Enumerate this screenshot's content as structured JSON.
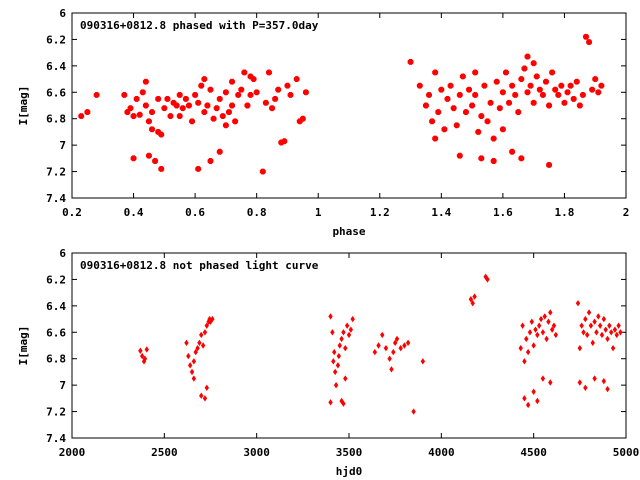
{
  "chart_data": [
    {
      "type": "scatter",
      "title": "090316+0812.8 phased with P=357.0day",
      "xlabel": "phase",
      "ylabel": "I[mag]",
      "xlim": [
        0.2,
        2.0
      ],
      "ylim": [
        6.0,
        7.4
      ],
      "y_inverted": true,
      "xticks": [
        "0.2",
        "0.4",
        "0.6",
        "0.8",
        "1",
        "1.2",
        "1.4",
        "1.6",
        "1.8",
        "2"
      ],
      "yticks": [
        "6",
        "6.2",
        "6.4",
        "6.6",
        "6.8",
        "7",
        "7.2",
        "7.4"
      ],
      "marker": "star",
      "color": "#ff0000",
      "grid": false,
      "points": [
        [
          0.23,
          6.78
        ],
        [
          0.25,
          6.75
        ],
        [
          0.28,
          6.62
        ],
        [
          0.37,
          6.62
        ],
        [
          0.38,
          6.75
        ],
        [
          0.39,
          6.72
        ],
        [
          0.4,
          6.78
        ],
        [
          0.4,
          7.1
        ],
        [
          0.41,
          6.65
        ],
        [
          0.42,
          6.77
        ],
        [
          0.43,
          6.6
        ],
        [
          0.44,
          6.52
        ],
        [
          0.44,
          6.7
        ],
        [
          0.45,
          6.82
        ],
        [
          0.46,
          6.75
        ],
        [
          0.45,
          7.08
        ],
        [
          0.46,
          6.88
        ],
        [
          0.47,
          7.12
        ],
        [
          0.48,
          6.9
        ],
        [
          0.48,
          6.65
        ],
        [
          0.49,
          6.92
        ],
        [
          0.49,
          7.18
        ],
        [
          0.5,
          6.72
        ],
        [
          0.51,
          6.65
        ],
        [
          0.52,
          6.78
        ],
        [
          0.53,
          6.68
        ],
        [
          0.54,
          6.7
        ],
        [
          0.55,
          6.62
        ],
        [
          0.55,
          6.78
        ],
        [
          0.56,
          6.72
        ],
        [
          0.57,
          6.65
        ],
        [
          0.58,
          6.7
        ],
        [
          0.59,
          6.82
        ],
        [
          0.6,
          6.62
        ],
        [
          0.61,
          6.68
        ],
        [
          0.61,
          7.18
        ],
        [
          0.62,
          6.55
        ],
        [
          0.63,
          6.5
        ],
        [
          0.63,
          6.75
        ],
        [
          0.64,
          6.7
        ],
        [
          0.65,
          6.58
        ],
        [
          0.65,
          7.12
        ],
        [
          0.66,
          6.8
        ],
        [
          0.67,
          6.72
        ],
        [
          0.68,
          6.65
        ],
        [
          0.68,
          7.05
        ],
        [
          0.69,
          6.78
        ],
        [
          0.7,
          6.6
        ],
        [
          0.7,
          6.85
        ],
        [
          0.71,
          6.75
        ],
        [
          0.72,
          6.7
        ],
        [
          0.72,
          6.52
        ],
        [
          0.73,
          6.82
        ],
        [
          0.74,
          6.62
        ],
        [
          0.75,
          6.58
        ],
        [
          0.76,
          6.45
        ],
        [
          0.77,
          6.7
        ],
        [
          0.78,
          6.48
        ],
        [
          0.78,
          6.62
        ],
        [
          0.79,
          6.5
        ],
        [
          0.8,
          6.6
        ],
        [
          0.82,
          7.2
        ],
        [
          0.83,
          6.68
        ],
        [
          0.84,
          6.45
        ],
        [
          0.85,
          6.72
        ],
        [
          0.86,
          6.65
        ],
        [
          0.87,
          6.58
        ],
        [
          0.88,
          6.98
        ],
        [
          0.89,
          6.97
        ],
        [
          0.9,
          6.55
        ],
        [
          0.91,
          6.62
        ],
        [
          0.93,
          6.5
        ],
        [
          0.94,
          6.82
        ],
        [
          0.95,
          6.8
        ],
        [
          0.96,
          6.6
        ],
        [
          1.3,
          6.37
        ],
        [
          1.33,
          6.55
        ],
        [
          1.35,
          6.7
        ],
        [
          1.36,
          6.62
        ],
        [
          1.37,
          6.82
        ],
        [
          1.38,
          6.95
        ],
        [
          1.38,
          6.45
        ],
        [
          1.39,
          6.75
        ],
        [
          1.4,
          6.58
        ],
        [
          1.41,
          6.88
        ],
        [
          1.42,
          6.65
        ],
        [
          1.43,
          6.55
        ],
        [
          1.44,
          6.72
        ],
        [
          1.45,
          6.85
        ],
        [
          1.46,
          6.62
        ],
        [
          1.46,
          7.08
        ],
        [
          1.47,
          6.48
        ],
        [
          1.48,
          6.75
        ],
        [
          1.49,
          6.58
        ],
        [
          1.5,
          6.7
        ],
        [
          1.51,
          6.62
        ],
        [
          1.51,
          6.45
        ],
        [
          1.52,
          6.9
        ],
        [
          1.53,
          6.78
        ],
        [
          1.53,
          7.1
        ],
        [
          1.54,
          6.55
        ],
        [
          1.55,
          6.82
        ],
        [
          1.56,
          6.68
        ],
        [
          1.57,
          6.95
        ],
        [
          1.57,
          7.12
        ],
        [
          1.58,
          6.52
        ],
        [
          1.59,
          6.72
        ],
        [
          1.6,
          6.6
        ],
        [
          1.6,
          6.88
        ],
        [
          1.61,
          6.45
        ],
        [
          1.62,
          6.68
        ],
        [
          1.63,
          6.55
        ],
        [
          1.63,
          7.05
        ],
        [
          1.64,
          6.62
        ],
        [
          1.65,
          6.75
        ],
        [
          1.66,
          6.5
        ],
        [
          1.66,
          7.1
        ],
        [
          1.67,
          6.42
        ],
        [
          1.68,
          6.6
        ],
        [
          1.68,
          6.33
        ],
        [
          1.69,
          6.55
        ],
        [
          1.7,
          6.68
        ],
        [
          1.7,
          6.38
        ],
        [
          1.71,
          6.48
        ],
        [
          1.72,
          6.58
        ],
        [
          1.73,
          6.62
        ],
        [
          1.74,
          6.52
        ],
        [
          1.75,
          6.7
        ],
        [
          1.75,
          7.15
        ],
        [
          1.76,
          6.45
        ],
        [
          1.77,
          6.58
        ],
        [
          1.78,
          6.62
        ],
        [
          1.79,
          6.55
        ],
        [
          1.8,
          6.68
        ],
        [
          1.81,
          6.6
        ],
        [
          1.82,
          6.55
        ],
        [
          1.83,
          6.65
        ],
        [
          1.84,
          6.52
        ],
        [
          1.85,
          6.7
        ],
        [
          1.86,
          6.62
        ],
        [
          1.87,
          6.18
        ],
        [
          1.88,
          6.22
        ],
        [
          1.89,
          6.58
        ],
        [
          1.9,
          6.5
        ],
        [
          1.91,
          6.6
        ],
        [
          1.92,
          6.55
        ]
      ]
    },
    {
      "type": "scatter",
      "title": "090316+0812.8 not phased light curve",
      "xlabel": "hjd0",
      "ylabel": "I[mag]",
      "xlim": [
        2000,
        5000
      ],
      "ylim": [
        6.0,
        7.4
      ],
      "y_inverted": true,
      "xticks": [
        "2000",
        "2500",
        "3000",
        "3500",
        "4000",
        "4500",
        "5000"
      ],
      "yticks": [
        "6",
        "6.2",
        "6.4",
        "6.6",
        "6.8",
        "7",
        "7.2",
        "7.4"
      ],
      "marker": "diamond",
      "color": "#ff0000",
      "grid": false,
      "points": [
        [
          2370,
          6.74
        ],
        [
          2380,
          6.78
        ],
        [
          2390,
          6.82
        ],
        [
          2395,
          6.8
        ],
        [
          2405,
          6.73
        ],
        [
          2620,
          6.68
        ],
        [
          2630,
          6.78
        ],
        [
          2640,
          6.85
        ],
        [
          2650,
          6.9
        ],
        [
          2660,
          6.82
        ],
        [
          2670,
          6.75
        ],
        [
          2680,
          6.72
        ],
        [
          2690,
          6.68
        ],
        [
          2700,
          6.62
        ],
        [
          2710,
          6.7
        ],
        [
          2720,
          6.6
        ],
        [
          2730,
          6.55
        ],
        [
          2740,
          6.52
        ],
        [
          2745,
          6.5
        ],
        [
          2750,
          6.52
        ],
        [
          2760,
          6.5
        ],
        [
          2700,
          7.08
        ],
        [
          2720,
          7.1
        ],
        [
          2730,
          7.02
        ],
        [
          2660,
          6.95
        ],
        [
          3400,
          6.48
        ],
        [
          3410,
          6.6
        ],
        [
          3415,
          6.82
        ],
        [
          3420,
          6.75
        ],
        [
          3425,
          6.9
        ],
        [
          3430,
          7.0
        ],
        [
          3440,
          6.85
        ],
        [
          3445,
          6.78
        ],
        [
          3450,
          6.7
        ],
        [
          3460,
          6.65
        ],
        [
          3470,
          6.6
        ],
        [
          3480,
          6.72
        ],
        [
          3490,
          6.55
        ],
        [
          3500,
          6.62
        ],
        [
          3510,
          6.58
        ],
        [
          3520,
          6.5
        ],
        [
          3400,
          7.13
        ],
        [
          3460,
          7.12
        ],
        [
          3470,
          7.14
        ],
        [
          3480,
          6.95
        ],
        [
          3640,
          6.75
        ],
        [
          3660,
          6.7
        ],
        [
          3680,
          6.62
        ],
        [
          3700,
          6.72
        ],
        [
          3720,
          6.8
        ],
        [
          3730,
          6.88
        ],
        [
          3740,
          6.75
        ],
        [
          3750,
          6.68
        ],
        [
          3760,
          6.65
        ],
        [
          3780,
          6.72
        ],
        [
          3800,
          6.7
        ],
        [
          3820,
          6.68
        ],
        [
          3850,
          7.2
        ],
        [
          3900,
          6.82
        ],
        [
          4160,
          6.35
        ],
        [
          4170,
          6.38
        ],
        [
          4180,
          6.33
        ],
        [
          4240,
          6.18
        ],
        [
          4250,
          6.2
        ],
        [
          4430,
          6.72
        ],
        [
          4440,
          6.55
        ],
        [
          4450,
          6.82
        ],
        [
          4460,
          6.65
        ],
        [
          4470,
          6.75
        ],
        [
          4480,
          6.6
        ],
        [
          4490,
          6.52
        ],
        [
          4500,
          6.7
        ],
        [
          4510,
          6.58
        ],
        [
          4520,
          6.62
        ],
        [
          4530,
          6.55
        ],
        [
          4540,
          6.5
        ],
        [
          4550,
          6.6
        ],
        [
          4560,
          6.48
        ],
        [
          4570,
          6.65
        ],
        [
          4580,
          6.52
        ],
        [
          4590,
          6.45
        ],
        [
          4600,
          6.58
        ],
        [
          4610,
          6.55
        ],
        [
          4620,
          6.62
        ],
        [
          4450,
          7.1
        ],
        [
          4470,
          7.15
        ],
        [
          4500,
          7.05
        ],
        [
          4520,
          7.12
        ],
        [
          4550,
          6.95
        ],
        [
          4590,
          6.98
        ],
        [
          4740,
          6.38
        ],
        [
          4750,
          6.72
        ],
        [
          4760,
          6.55
        ],
        [
          4770,
          6.6
        ],
        [
          4780,
          6.5
        ],
        [
          4790,
          6.62
        ],
        [
          4800,
          6.45
        ],
        [
          4810,
          6.55
        ],
        [
          4820,
          6.68
        ],
        [
          4830,
          6.52
        ],
        [
          4840,
          6.6
        ],
        [
          4850,
          6.48
        ],
        [
          4860,
          6.55
        ],
        [
          4870,
          6.62
        ],
        [
          4880,
          6.5
        ],
        [
          4890,
          6.58
        ],
        [
          4900,
          6.65
        ],
        [
          4910,
          6.55
        ],
        [
          4920,
          6.6
        ],
        [
          4930,
          6.72
        ],
        [
          4940,
          6.58
        ],
        [
          4950,
          6.62
        ],
        [
          4960,
          6.55
        ],
        [
          4970,
          6.6
        ],
        [
          4750,
          6.98
        ],
        [
          4780,
          7.02
        ],
        [
          4830,
          6.95
        ],
        [
          4880,
          6.97
        ],
        [
          4900,
          7.03
        ]
      ]
    }
  ]
}
